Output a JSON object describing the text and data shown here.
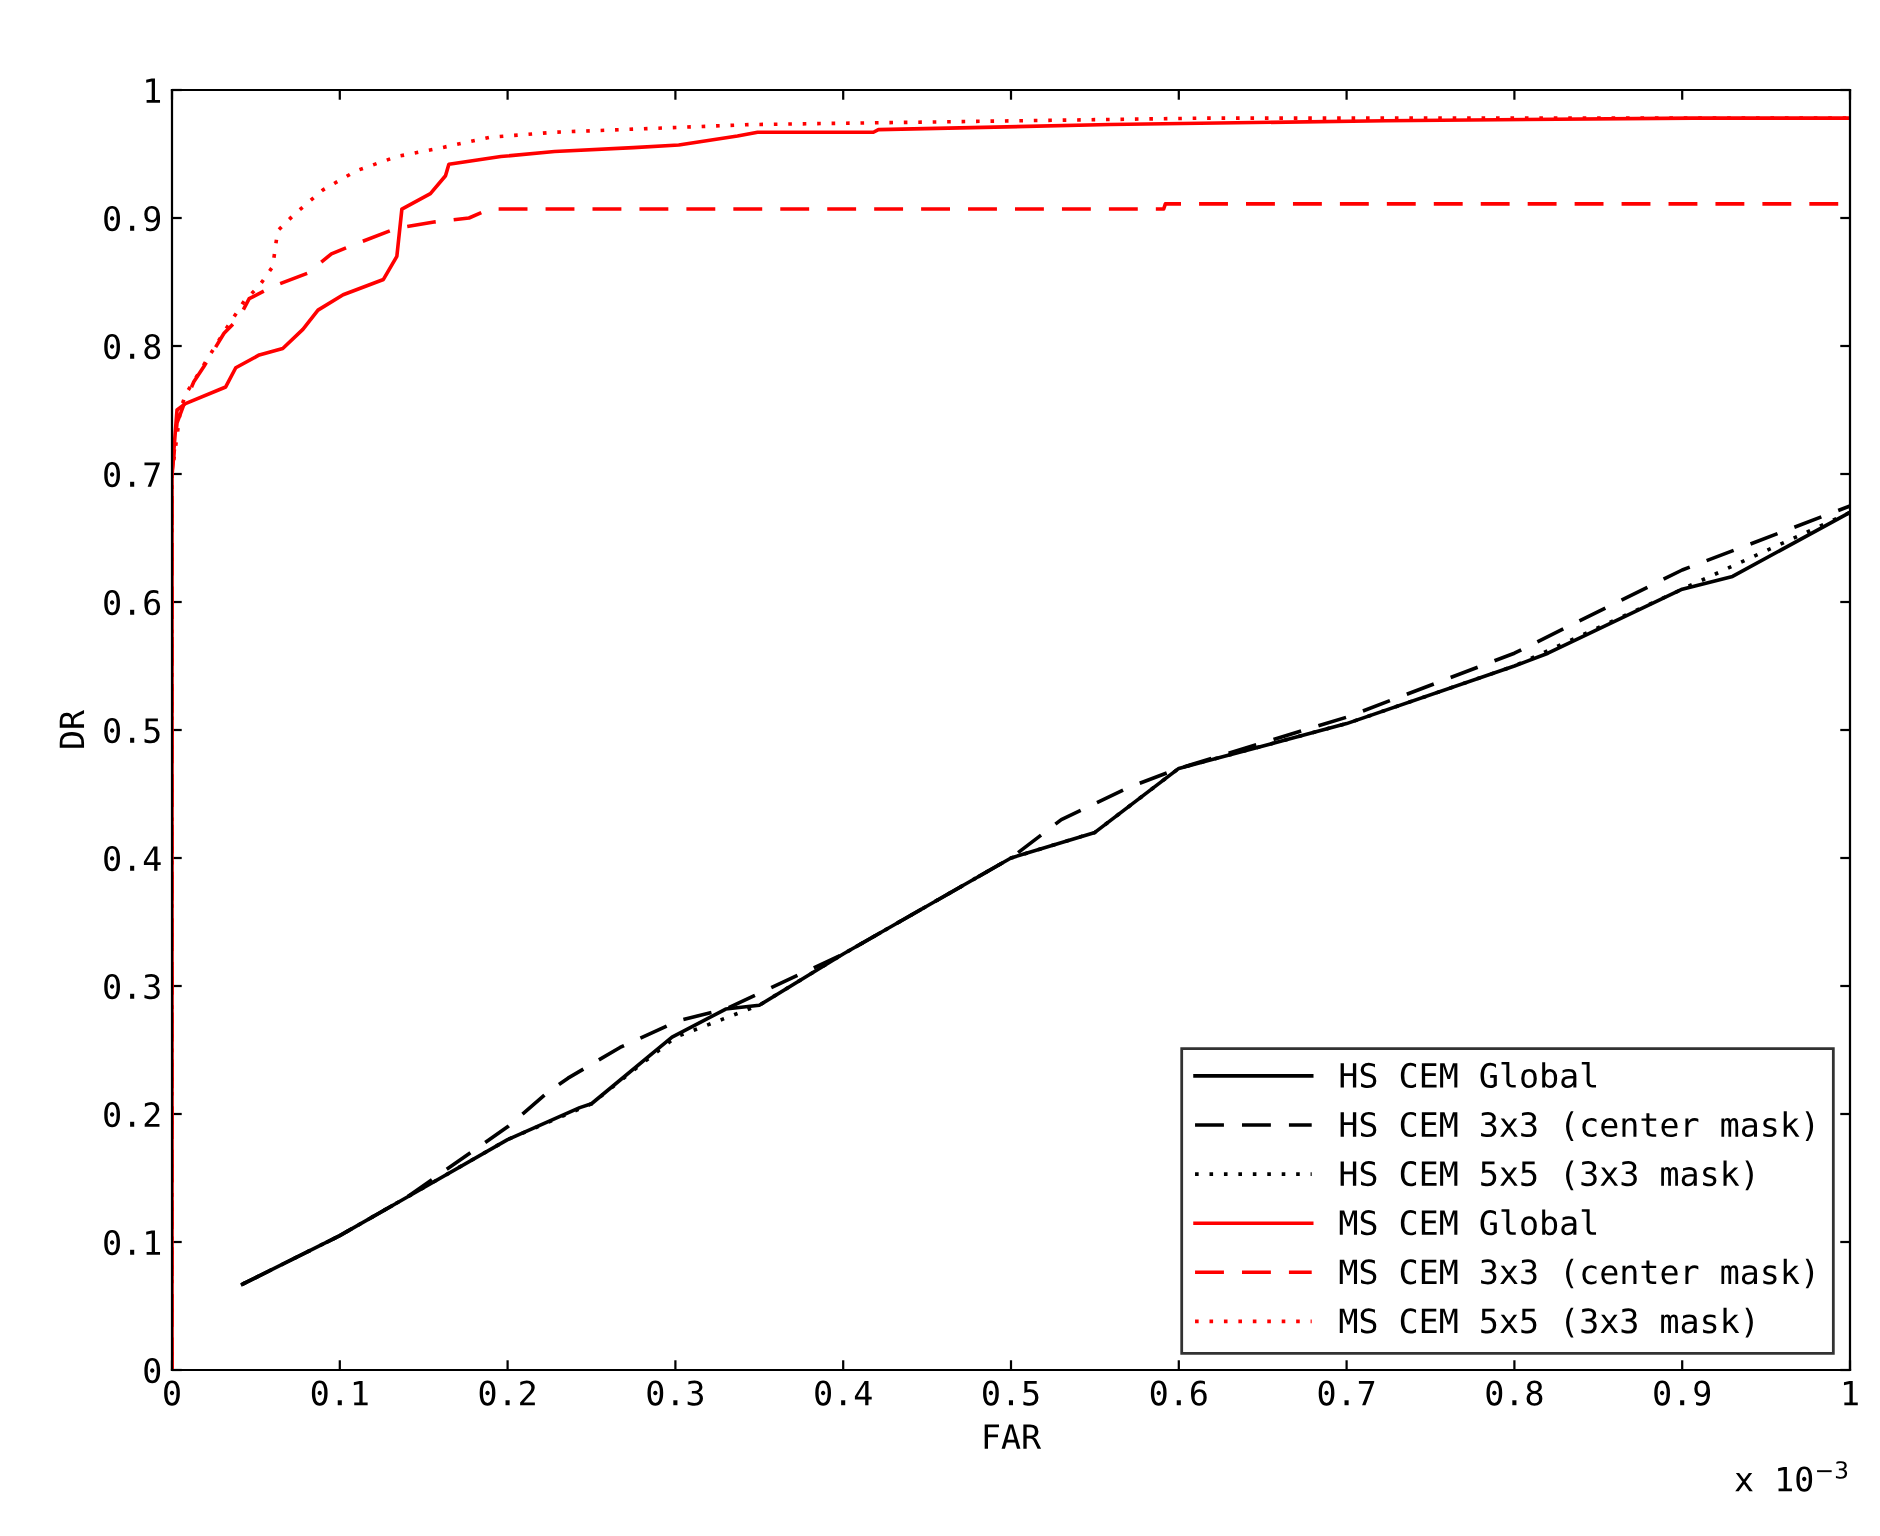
{
  "chart_data": {
    "type": "line",
    "xlabel": "FAR",
    "ylabel": "DR",
    "annotations": [
      "x 10$^{−3}$"
    ],
    "xlim": [
      0,
      1
    ],
    "ylim": [
      0,
      1
    ],
    "xticks": [
      0,
      0.1,
      0.2,
      0.3,
      0.4,
      0.5,
      0.6,
      0.7,
      0.8,
      0.9,
      1
    ],
    "yticks": [
      0,
      0.1,
      0.2,
      0.3,
      0.4,
      0.5,
      0.6,
      0.7,
      0.8,
      0.9,
      1
    ],
    "grid": false,
    "legend": "bottom right",
    "marker": "none",
    "series": [
      {
        "name": "HS CEM Global",
        "color": "#000000",
        "line_style": "solid",
        "x": [
          0.042,
          0.1,
          0.14,
          0.2,
          0.243,
          0.25,
          0.298,
          0.33,
          0.35,
          0.4,
          0.5,
          0.55,
          0.6,
          0.7,
          0.8,
          0.82,
          0.9,
          0.93,
          1.0
        ],
        "values": [
          0.067,
          0.105,
          0.135,
          0.18,
          0.205,
          0.208,
          0.26,
          0.282,
          0.285,
          0.325,
          0.4,
          0.42,
          0.47,
          0.505,
          0.55,
          0.56,
          0.61,
          0.62,
          0.67
        ]
      },
      {
        "name": "HS CEM 3x3 (center mask)",
        "color": "#000000",
        "line_style": "dashed",
        "x": [
          0.042,
          0.1,
          0.14,
          0.2,
          0.224,
          0.236,
          0.267,
          0.302,
          0.33,
          0.4,
          0.5,
          0.53,
          0.57,
          0.6,
          0.7,
          0.8,
          0.9,
          1.0
        ],
        "values": [
          0.067,
          0.105,
          0.135,
          0.19,
          0.217,
          0.228,
          0.252,
          0.273,
          0.282,
          0.325,
          0.4,
          0.43,
          0.455,
          0.47,
          0.51,
          0.56,
          0.625,
          0.675
        ]
      },
      {
        "name": "HS CEM 5x5 (3x3 mask)",
        "color": "#000000",
        "line_style": "dotted",
        "x": [
          0.042,
          0.1,
          0.14,
          0.2,
          0.25,
          0.3,
          0.35,
          0.4,
          0.5,
          0.55,
          0.6,
          0.7,
          0.8,
          0.9,
          1.0
        ],
        "values": [
          0.067,
          0.105,
          0.135,
          0.18,
          0.208,
          0.26,
          0.285,
          0.325,
          0.4,
          0.42,
          0.47,
          0.505,
          0.55,
          0.61,
          0.67
        ]
      },
      {
        "name": "MS CEM Global",
        "color": "#ff0000",
        "line_style": "solid",
        "x": [
          0,
          0,
          0.003,
          0.008,
          0.032,
          0.038,
          0.052,
          0.066,
          0.078,
          0.087,
          0.102,
          0.126,
          0.134,
          0.137,
          0.154,
          0.163,
          0.165,
          0.196,
          0.228,
          0.275,
          0.302,
          0.337,
          0.349,
          0.418,
          0.421,
          0.559,
          0.723,
          0.906,
          1.0
        ],
        "values": [
          0,
          0.7,
          0.75,
          0.755,
          0.768,
          0.783,
          0.793,
          0.798,
          0.813,
          0.828,
          0.84,
          0.852,
          0.87,
          0.907,
          0.919,
          0.933,
          0.942,
          0.948,
          0.952,
          0.955,
          0.957,
          0.964,
          0.967,
          0.967,
          0.969,
          0.973,
          0.976,
          0.978,
          0.978
        ]
      },
      {
        "name": "MS CEM 3x3 (center mask)",
        "color": "#ff0000",
        "line_style": "dashed",
        "x": [
          0,
          0,
          0.003,
          0.007,
          0.013,
          0.019,
          0.031,
          0.04,
          0.046,
          0.061,
          0.081,
          0.095,
          0.11,
          0.134,
          0.157,
          0.177,
          0.189,
          0.591,
          0.592,
          1.0
        ],
        "values": [
          0,
          0.7,
          0.74,
          0.754,
          0.772,
          0.784,
          0.81,
          0.822,
          0.837,
          0.847,
          0.857,
          0.872,
          0.88,
          0.892,
          0.897,
          0.9,
          0.907,
          0.907,
          0.911,
          0.911
        ]
      },
      {
        "name": "MS CEM 5x5 (3x3 mask)",
        "color": "#ff0000",
        "line_style": "dotted",
        "x": [
          0,
          0,
          0.005,
          0.008,
          0.032,
          0.043,
          0.052,
          0.06,
          0.063,
          0.073,
          0.09,
          0.11,
          0.134,
          0.161,
          0.189,
          0.228,
          0.345,
          0.614,
          0.906,
          1.0
        ],
        "values": [
          0,
          0.7,
          0.75,
          0.762,
          0.813,
          0.835,
          0.847,
          0.862,
          0.89,
          0.903,
          0.922,
          0.937,
          0.948,
          0.955,
          0.963,
          0.967,
          0.973,
          0.978,
          0.978,
          0.978
        ]
      }
    ]
  }
}
